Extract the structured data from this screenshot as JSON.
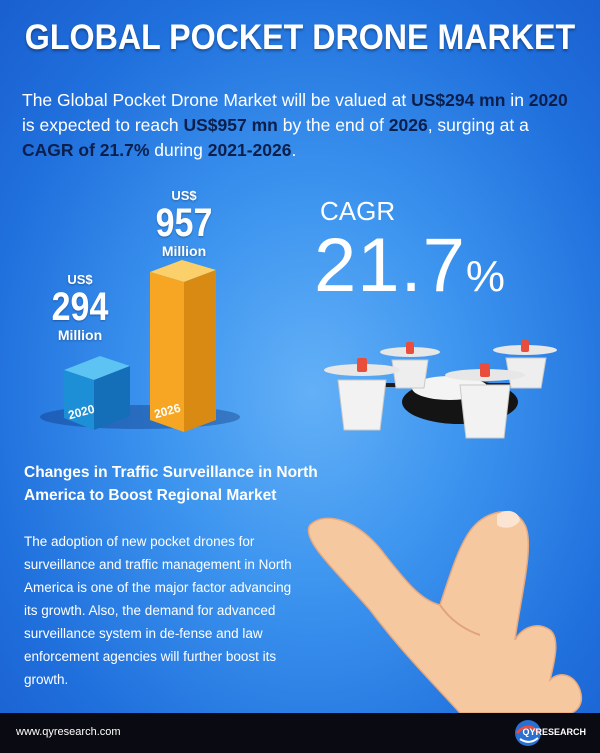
{
  "title": "GLOBAL POCKET DRONE MARKET",
  "intro": {
    "p1": "The Global Pocket Drone Market will be valued at ",
    "v1": "US$294 mn",
    "p2": " in ",
    "v2": "2020",
    "p3": " is expected to reach ",
    "v3": "US$957 mn",
    "p4": " by the end of ",
    "v4": "2026",
    "p5": ", surging at a ",
    "v5": "CAGR of 21.7%",
    "p6": " during ",
    "v6": "2021-2026",
    "p7": "."
  },
  "bars": [
    {
      "currency": "US$",
      "value": "294",
      "unit": "Million",
      "year": "2020",
      "amount": 294
    },
    {
      "currency": "US$",
      "value": "957",
      "unit": "Million",
      "year": "2026",
      "amount": 957
    }
  ],
  "cagr": {
    "label": "CAGR",
    "value": "21.7",
    "percent": "%"
  },
  "sub_heading": "Changes in Traffic Surveillance in North America to Boost Regional Market",
  "body_text": "The adoption of new pocket drones for surveillance and traffic management in North America is one of the major factor advancing its growth. Also, the demand for advanced surveillance system in de-fense and law enforcement agencies will further boost its growth.",
  "footer": {
    "url": "www.qyresearch.com",
    "logo_text": "QYRESEARCH"
  },
  "colors": {
    "bar_2020": "#1d8fd6",
    "bar_2026": "#f6a623",
    "highlight": "#0b1f4d"
  }
}
